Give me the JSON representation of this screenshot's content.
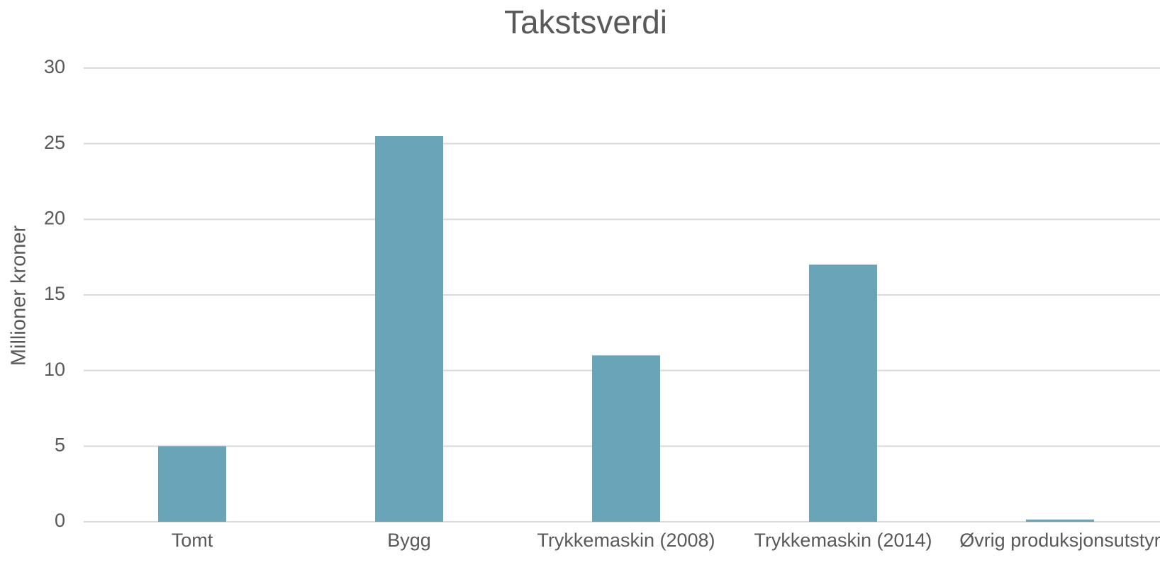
{
  "chart_data": {
    "type": "bar",
    "title": "Takstsverdi",
    "y_label": "Millioner kroner",
    "categories": [
      "Tomt",
      "Bygg",
      "Trykkemaskin (2008)",
      "Trykkemaskin (2014)",
      "Øvrig produksjonsutstyr"
    ],
    "values": [
      5,
      25.5,
      11,
      17,
      0.15
    ],
    "color": "#6aa4b9",
    "ylim": [
      0,
      30
    ],
    "yticks": [
      0,
      5,
      10,
      15,
      20,
      25,
      30
    ],
    "grid": true
  }
}
